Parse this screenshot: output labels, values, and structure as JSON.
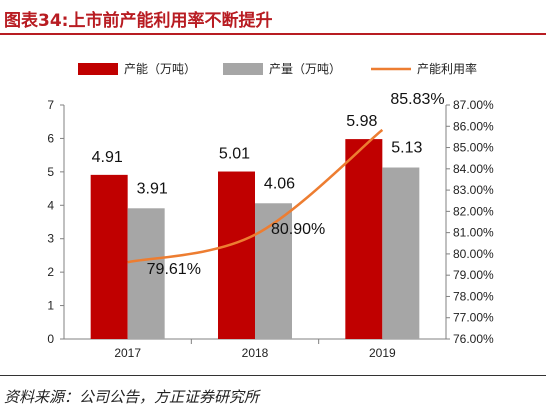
{
  "title": "图表34:上市前产能利用率不断提升",
  "source": "资料来源：公司公告，方正证券研究所",
  "colors": {
    "capacity": "#c00000",
    "output": "#a6a6a6",
    "utilization": "#ed7d31",
    "title": "#b81c22"
  },
  "chart_data": {
    "type": "bar",
    "categories": [
      "2017",
      "2018",
      "2019"
    ],
    "series": [
      {
        "name": "产能（万吨）",
        "type": "bar",
        "axis": "left",
        "values": [
          4.91,
          5.01,
          5.98
        ],
        "labels": [
          "4.91",
          "5.01",
          "5.98"
        ]
      },
      {
        "name": "产量（万吨）",
        "type": "bar",
        "axis": "left",
        "values": [
          3.91,
          4.06,
          5.13
        ],
        "labels": [
          "3.91",
          "4.06",
          "5.13"
        ]
      },
      {
        "name": "产能利用率",
        "type": "line",
        "axis": "right",
        "values": [
          79.61,
          80.9,
          85.83
        ],
        "labels": [
          "79.61%",
          "80.90%",
          "85.83%"
        ]
      }
    ],
    "ylim_left": [
      0,
      7
    ],
    "yticks_left": [
      "0",
      "1",
      "2",
      "3",
      "4",
      "5",
      "6",
      "7"
    ],
    "ylim_right": [
      76,
      87
    ],
    "yticks_right": [
      "76.00%",
      "77.00%",
      "78.00%",
      "79.00%",
      "80.00%",
      "81.00%",
      "82.00%",
      "83.00%",
      "84.00%",
      "85.00%",
      "86.00%",
      "87.00%"
    ],
    "legend_position": "top",
    "grid": false
  }
}
